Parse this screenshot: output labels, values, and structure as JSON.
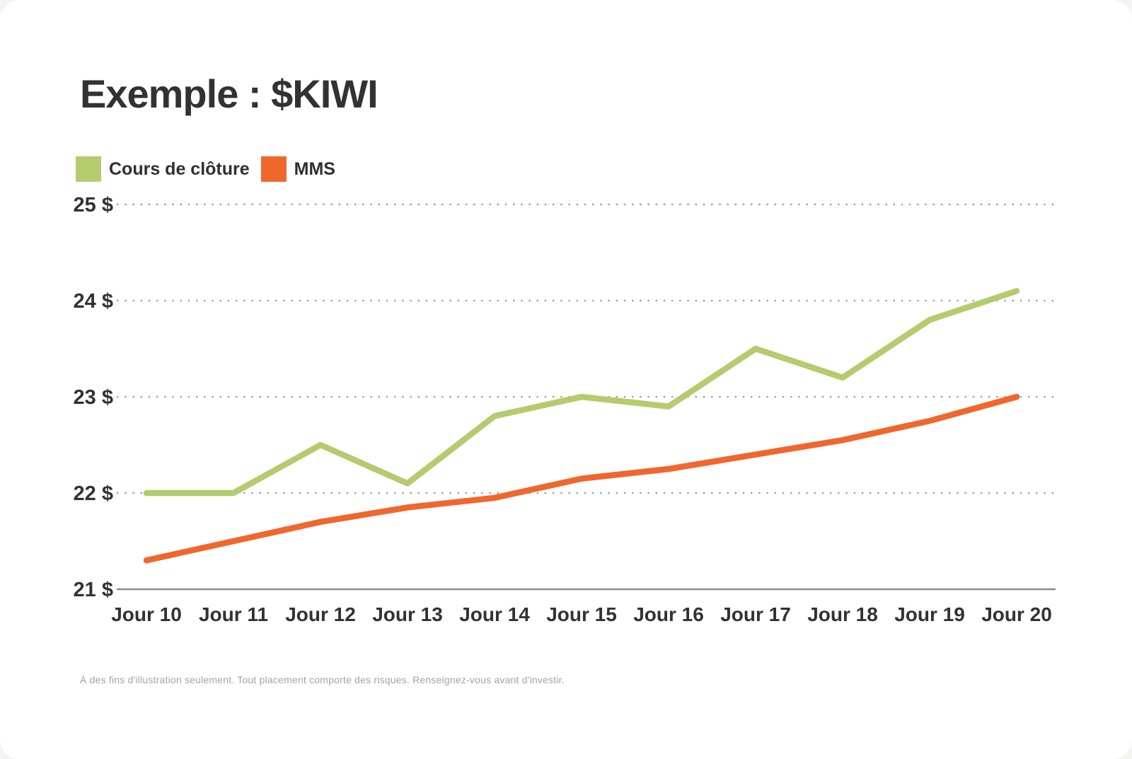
{
  "page": {
    "title": "Exemple : $KIWI",
    "footnote": "À des fins d'illustration seulement. Tout placement comporte des risques. Renseignez-vous avant d'investir."
  },
  "legend": {
    "items": [
      {
        "label": "Cours de clôture",
        "color": "#b5cb6e"
      },
      {
        "label": "MMS",
        "color": "#f0672e"
      }
    ]
  },
  "colors": {
    "close_line": "#b5cb6e",
    "mms_line": "#f0672e",
    "text_dark": "#323232",
    "gridline": "#9b9b9b",
    "axis_line": "#8a8a8a",
    "footnote_gray": "#a3a3a3"
  },
  "chart_data": {
    "type": "line",
    "title": "Exemple : $KIWI",
    "categories": [
      "Jour 10",
      "Jour 11",
      "Jour 12",
      "Jour 13",
      "Jour 14",
      "Jour 15",
      "Jour 16",
      "Jour 17",
      "Jour 18",
      "Jour 19",
      "Jour 20"
    ],
    "series": [
      {
        "name": "Cours de clôture",
        "color": "#b5cb6e",
        "values": [
          22.0,
          22.0,
          22.5,
          22.1,
          22.8,
          23.0,
          22.9,
          23.5,
          23.2,
          23.8,
          24.1
        ]
      },
      {
        "name": "MMS",
        "color": "#f0672e",
        "values": [
          21.3,
          21.5,
          21.7,
          21.85,
          21.95,
          22.15,
          22.25,
          22.4,
          22.55,
          22.75,
          23.0
        ]
      }
    ],
    "xlabel": "",
    "ylabel": "",
    "ytick_values": [
      21,
      22,
      23,
      24,
      25
    ],
    "ytick_labels": [
      "21 $",
      "22 $",
      "23 $",
      "24 $",
      "25 $"
    ],
    "ylim": [
      21,
      25
    ],
    "grid": "horizontal-dotted",
    "baseline_axis": "solid at 21",
    "legend_position": "top-left"
  }
}
